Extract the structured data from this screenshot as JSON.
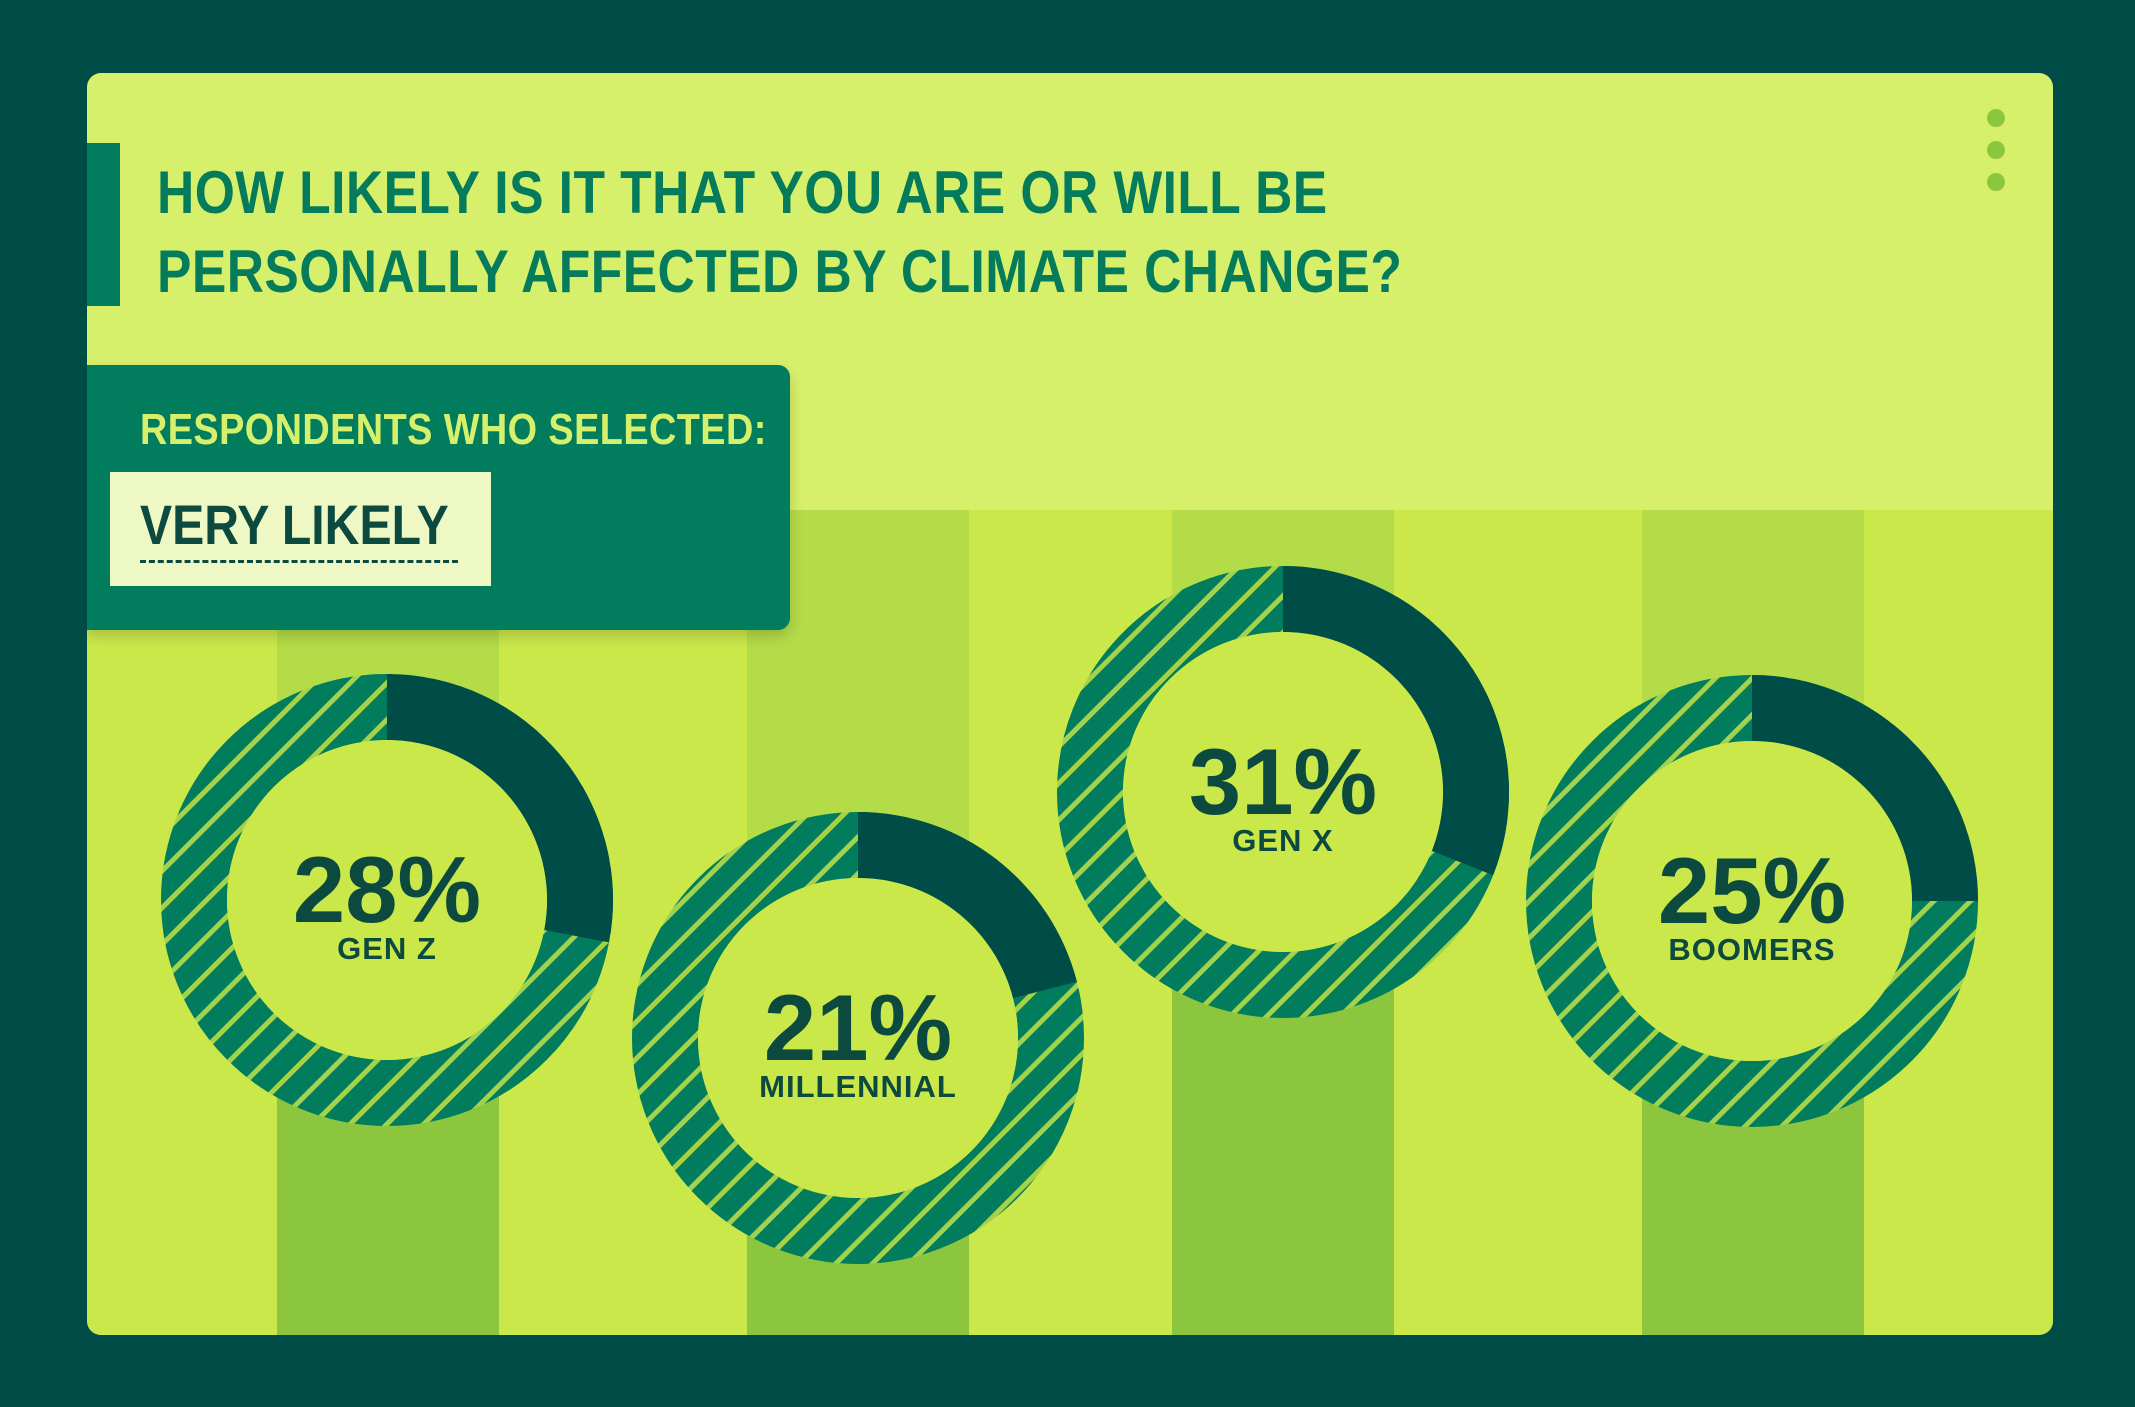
{
  "title": "HOW LIKELY IS IT THAT YOU ARE OR WILL BE PERSONALLY AFFECTED BY CLIMATE CHANGE?",
  "panel": {
    "label": "RESPONDENTS WHO SELECTED:",
    "answer": "VERY LIKELY"
  },
  "colors": {
    "background": "#004d47",
    "card": "#d7f06c",
    "highlight": "#004d47",
    "hatch_fill": "#017d5e",
    "hatch_line": "#a4d24a",
    "inner": "#cbe84b",
    "text_dark": "#0c4a3f",
    "stripe_dark": "#8cc63f",
    "stripe_mid": "#b4dc48"
  },
  "chart_data": {
    "type": "pie",
    "title": "HOW LIKELY IS IT THAT YOU ARE OR WILL BE PERSONALLY AFFECTED BY CLIMATE CHANGE?",
    "categories": [
      "GEN Z",
      "MILLENNIAL",
      "GEN X",
      "BOOMERS"
    ],
    "values": [
      28,
      21,
      31,
      25
    ],
    "labels": [
      "28%",
      "21%",
      "31%",
      "25%"
    ],
    "unit": "%"
  }
}
